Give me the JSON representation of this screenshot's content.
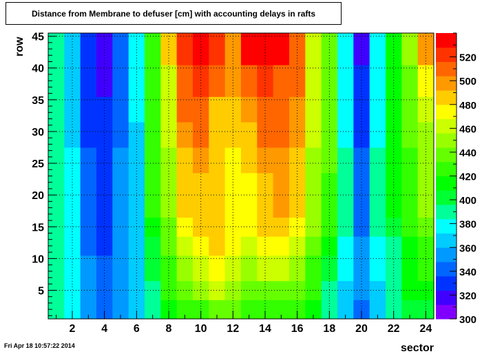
{
  "title": "Distance from Membrane to defuser [cm] with accounting delays in rafts",
  "date_stamp": "Fri Apr 18 10:57:22 2014",
  "chart_data": {
    "type": "heatmap",
    "title": "Distance from Membrane to defuser [cm] with accounting delays in rafts",
    "xlabel": "sector",
    "ylabel": "row",
    "xlim": [
      0.5,
      24.5
    ],
    "ylim": [
      0.5,
      45.5
    ],
    "zlim": [
      300,
      540
    ],
    "grid": true,
    "x_ticks": [
      2,
      4,
      6,
      8,
      10,
      12,
      14,
      16,
      18,
      20,
      22,
      24
    ],
    "y_ticks": [
      5,
      10,
      15,
      20,
      25,
      30,
      35,
      40,
      45
    ],
    "z_ticks": [
      300,
      320,
      340,
      360,
      380,
      400,
      420,
      440,
      460,
      480,
      500,
      520
    ],
    "palette": [
      "#8000ff",
      "#4000ff",
      "#0033ff",
      "#0066ff",
      "#0099ff",
      "#00ccff",
      "#00ffff",
      "#00ff99",
      "#00ff33",
      "#00ff00",
      "#33ff00",
      "#66ff00",
      "#99ff00",
      "#ccff00",
      "#ffff00",
      "#ffcc00",
      "#ff9900",
      "#ff6600",
      "#ff3300",
      "#ff0000"
    ],
    "row_bands": [
      {
        "rows": [
          1,
          3
        ],
        "values": [
          385,
          375,
          355,
          345,
          350,
          365,
          385,
          415,
          425,
          430,
          440,
          440,
          430,
          425,
          425,
          430,
          415,
          385,
          360,
          345,
          360,
          385,
          405,
          405
        ]
      },
      {
        "rows": [
          4,
          6
        ],
        "values": [
          385,
          375,
          355,
          345,
          350,
          365,
          385,
          425,
          440,
          445,
          460,
          445,
          440,
          440,
          440,
          440,
          425,
          395,
          365,
          355,
          365,
          385,
          415,
          415
        ]
      },
      {
        "rows": [
          7,
          10
        ],
        "values": [
          385,
          375,
          355,
          345,
          350,
          365,
          405,
          430,
          450,
          460,
          470,
          460,
          450,
          460,
          460,
          450,
          430,
          405,
          375,
          355,
          375,
          395,
          415,
          425
        ]
      },
      {
        "rows": [
          11,
          13
        ],
        "values": [
          385,
          375,
          345,
          335,
          350,
          365,
          405,
          435,
          465,
          475,
          480,
          470,
          460,
          475,
          475,
          465,
          435,
          410,
          375,
          355,
          375,
          395,
          415,
          425
        ]
      },
      {
        "rows": [
          14,
          16
        ],
        "values": [
          385,
          375,
          345,
          335,
          350,
          365,
          415,
          440,
          470,
          485,
          485,
          475,
          470,
          485,
          485,
          475,
          445,
          420,
          385,
          345,
          385,
          405,
          425,
          435
        ]
      },
      {
        "rows": [
          17,
          23
        ],
        "values": [
          385,
          375,
          345,
          335,
          350,
          365,
          425,
          445,
          480,
          485,
          485,
          475,
          475,
          485,
          495,
          480,
          455,
          430,
          385,
          345,
          385,
          415,
          430,
          445
        ]
      },
      {
        "rows": [
          24,
          27
        ],
        "values": [
          385,
          375,
          345,
          325,
          350,
          365,
          425,
          450,
          490,
          495,
          480,
          475,
          480,
          495,
          495,
          485,
          455,
          435,
          385,
          345,
          385,
          415,
          430,
          445
        ]
      },
      {
        "rows": [
          28,
          31
        ],
        "values": [
          385,
          365,
          335,
          325,
          340,
          365,
          425,
          460,
          495,
          505,
          490,
          485,
          490,
          505,
          505,
          495,
          460,
          435,
          380,
          335,
          380,
          415,
          440,
          455
        ]
      },
      {
        "rows": [
          32,
          35
        ],
        "values": [
          385,
          365,
          335,
          325,
          340,
          375,
          425,
          465,
          505,
          515,
          490,
          485,
          495,
          515,
          510,
          500,
          465,
          435,
          380,
          335,
          380,
          415,
          440,
          465
        ]
      },
      {
        "rows": [
          36,
          40
        ],
        "values": [
          385,
          365,
          335,
          315,
          340,
          375,
          425,
          465,
          510,
          520,
          510,
          500,
          510,
          525,
          515,
          505,
          465,
          435,
          375,
          325,
          375,
          415,
          440,
          475
        ]
      },
      {
        "rows": [
          41,
          45
        ],
        "values": [
          385,
          365,
          335,
          315,
          340,
          375,
          425,
          480,
          525,
          535,
          520,
          495,
          530,
          535,
          530,
          510,
          465,
          435,
          375,
          315,
          375,
          415,
          450,
          495
        ]
      }
    ]
  }
}
